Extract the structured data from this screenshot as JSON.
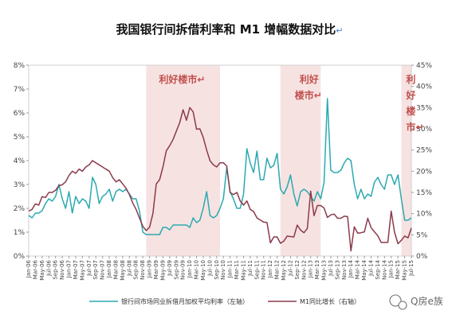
{
  "chart_data": {
    "type": "line",
    "title": "我国银行间拆借利率和 M1 增幅数据对比",
    "title_mark": "↵",
    "y_left": {
      "ylim": [
        0,
        8
      ],
      "ticks": [
        "0%",
        "1%",
        "2%",
        "3%",
        "4%",
        "5%",
        "6%",
        "7%",
        "8%"
      ]
    },
    "y_right": {
      "ylim": [
        0,
        45
      ],
      "ticks": [
        "0%",
        "5%",
        "10%",
        "15%",
        "20%",
        "25%",
        "30%",
        "35%",
        "40%",
        "45%"
      ]
    },
    "x_range": [
      "2006-01",
      "2015-07"
    ],
    "x_ticks": [
      "Jan-06",
      "Mar-06",
      "May-06",
      "Jul-06",
      "Sep-06",
      "Nov-06",
      "Jan-07",
      "Mar-07",
      "May-07",
      "Jul-07",
      "Sep-07",
      "Nov-07",
      "Jan-08",
      "Mar-08",
      "May-08",
      "Jul-08",
      "Sep-08",
      "Nov-08",
      "Jan-09",
      "Mar-09",
      "May-09",
      "Jul-09",
      "Sep-09",
      "Nov-09",
      "Jan-10",
      "Mar-10",
      "May-10",
      "Jul-10",
      "Sep-10",
      "Nov-10",
      "Jan-11",
      "Mar-11",
      "May-11",
      "Jul-11",
      "Sep-11",
      "Nov-11",
      "Jan-12",
      "Mar-12",
      "May-12",
      "Jul-12",
      "Sep-12",
      "Nov-12",
      "Jan-13",
      "Mar-13",
      "May-13",
      "Jul-13",
      "Sep-13",
      "Nov-13",
      "Jan-14",
      "Mar-14",
      "May-14",
      "Jul-14",
      "Sep-14",
      "Nov-14",
      "Jan-15",
      "Mar-15",
      "May-15",
      "Jul-15"
    ],
    "series": [
      {
        "name": "银行间市场同业拆借月加权平均利率（左轴）",
        "axis": "left",
        "color": "#2aaab0",
        "points": [
          [
            "2006-01",
            1.7
          ],
          [
            "2006-02",
            1.6
          ],
          [
            "2006-03",
            1.8
          ],
          [
            "2006-04",
            1.8
          ],
          [
            "2006-05",
            1.9
          ],
          [
            "2006-06",
            2.2
          ],
          [
            "2006-07",
            2.4
          ],
          [
            "2006-08",
            2.3
          ],
          [
            "2006-09",
            2.5
          ],
          [
            "2006-10",
            3.0
          ],
          [
            "2006-11",
            2.4
          ],
          [
            "2006-12",
            2.0
          ],
          [
            "2007-01",
            2.7
          ],
          [
            "2007-02",
            1.8
          ],
          [
            "2007-03",
            2.5
          ],
          [
            "2007-04",
            2.2
          ],
          [
            "2007-05",
            2.4
          ],
          [
            "2007-06",
            2.3
          ],
          [
            "2007-07",
            2.0
          ],
          [
            "2007-08",
            3.3
          ],
          [
            "2007-09",
            3.0
          ],
          [
            "2007-10",
            2.2
          ],
          [
            "2007-11",
            2.5
          ],
          [
            "2007-12",
            2.6
          ],
          [
            "2008-01",
            2.8
          ],
          [
            "2008-02",
            2.3
          ],
          [
            "2008-03",
            2.7
          ],
          [
            "2008-04",
            2.8
          ],
          [
            "2008-05",
            2.7
          ],
          [
            "2008-06",
            2.8
          ],
          [
            "2008-07",
            2.6
          ],
          [
            "2008-08",
            2.4
          ],
          [
            "2008-09",
            2.4
          ],
          [
            "2008-10",
            1.9
          ],
          [
            "2008-11",
            1.0
          ],
          [
            "2008-12",
            0.9
          ],
          [
            "2009-01",
            0.9
          ],
          [
            "2009-02",
            0.9
          ],
          [
            "2009-03",
            0.9
          ],
          [
            "2009-04",
            0.9
          ],
          [
            "2009-05",
            1.2
          ],
          [
            "2009-06",
            1.2
          ],
          [
            "2009-07",
            1.1
          ],
          [
            "2009-08",
            1.3
          ],
          [
            "2009-09",
            1.3
          ],
          [
            "2009-10",
            1.3
          ],
          [
            "2009-11",
            1.3
          ],
          [
            "2009-12",
            1.3
          ],
          [
            "2010-01",
            1.2
          ],
          [
            "2010-02",
            1.6
          ],
          [
            "2010-03",
            1.4
          ],
          [
            "2010-04",
            1.5
          ],
          [
            "2010-05",
            2.0
          ],
          [
            "2010-06",
            2.7
          ],
          [
            "2010-07",
            1.7
          ],
          [
            "2010-08",
            1.6
          ],
          [
            "2010-09",
            1.7
          ],
          [
            "2010-10",
            2.0
          ],
          [
            "2010-11",
            2.4
          ],
          [
            "2010-12",
            3.7
          ],
          [
            "2011-01",
            2.7
          ],
          [
            "2011-02",
            2.4
          ],
          [
            "2011-03",
            2.0
          ],
          [
            "2011-04",
            2.0
          ],
          [
            "2011-05",
            2.6
          ],
          [
            "2011-06",
            4.5
          ],
          [
            "2011-07",
            3.9
          ],
          [
            "2011-08",
            3.5
          ],
          [
            "2011-09",
            4.4
          ],
          [
            "2011-10",
            3.2
          ],
          [
            "2011-11",
            3.2
          ],
          [
            "2011-12",
            4.1
          ],
          [
            "2012-01",
            3.7
          ],
          [
            "2012-02",
            3.8
          ],
          [
            "2012-03",
            4.3
          ],
          [
            "2012-04",
            2.8
          ],
          [
            "2012-05",
            2.6
          ],
          [
            "2012-06",
            2.9
          ],
          [
            "2012-07",
            3.4
          ],
          [
            "2012-08",
            2.6
          ],
          [
            "2012-09",
            2.1
          ],
          [
            "2012-10",
            2.7
          ],
          [
            "2012-11",
            2.8
          ],
          [
            "2012-12",
            2.7
          ],
          [
            "2013-01",
            2.5
          ],
          [
            "2013-02",
            2.3
          ],
          [
            "2013-03",
            2.7
          ],
          [
            "2013-04",
            2.4
          ],
          [
            "2013-05",
            3.1
          ],
          [
            "2013-06",
            6.6
          ],
          [
            "2013-07",
            3.6
          ],
          [
            "2013-08",
            3.5
          ],
          [
            "2013-09",
            3.5
          ],
          [
            "2013-10",
            3.6
          ],
          [
            "2013-11",
            3.9
          ],
          [
            "2013-12",
            4.1
          ],
          [
            "2014-01",
            4.0
          ],
          [
            "2014-02",
            3.0
          ],
          [
            "2014-03",
            2.4
          ],
          [
            "2014-04",
            2.8
          ],
          [
            "2014-05",
            2.4
          ],
          [
            "2014-06",
            2.6
          ],
          [
            "2014-07",
            2.5
          ],
          [
            "2014-08",
            3.1
          ],
          [
            "2014-09",
            3.3
          ],
          [
            "2014-10",
            3.0
          ],
          [
            "2014-11",
            2.8
          ],
          [
            "2014-12",
            3.4
          ],
          [
            "2015-01",
            3.4
          ],
          [
            "2015-02",
            3.0
          ],
          [
            "2015-03",
            3.4
          ],
          [
            "2015-04",
            2.4
          ],
          [
            "2015-05",
            1.5
          ],
          [
            "2015-06",
            1.5
          ],
          [
            "2015-07",
            1.6
          ]
        ]
      },
      {
        "name": "M1同比增长（右轴）",
        "axis": "right",
        "color": "#8b3a4a",
        "points": [
          [
            "2006-01",
            10.6
          ],
          [
            "2006-02",
            11.0
          ],
          [
            "2006-03",
            12.3
          ],
          [
            "2006-04",
            12.0
          ],
          [
            "2006-05",
            14.0
          ],
          [
            "2006-06",
            13.8
          ],
          [
            "2006-07",
            15.0
          ],
          [
            "2006-08",
            15.0
          ],
          [
            "2006-09",
            15.5
          ],
          [
            "2006-10",
            16.6
          ],
          [
            "2006-11",
            16.8
          ],
          [
            "2006-12",
            17.5
          ],
          [
            "2007-01",
            19.0
          ],
          [
            "2007-02",
            20.0
          ],
          [
            "2007-03",
            19.5
          ],
          [
            "2007-04",
            20.5
          ],
          [
            "2007-05",
            20.0
          ],
          [
            "2007-06",
            21.0
          ],
          [
            "2007-07",
            21.5
          ],
          [
            "2007-08",
            22.5
          ],
          [
            "2007-09",
            22.0
          ],
          [
            "2007-10",
            21.5
          ],
          [
            "2007-11",
            21.0
          ],
          [
            "2007-12",
            20.5
          ],
          [
            "2008-01",
            20.0
          ],
          [
            "2008-02",
            18.5
          ],
          [
            "2008-03",
            17.5
          ],
          [
            "2008-04",
            18.0
          ],
          [
            "2008-05",
            17.0
          ],
          [
            "2008-06",
            16.0
          ],
          [
            "2008-07",
            14.5
          ],
          [
            "2008-08",
            12.5
          ],
          [
            "2008-09",
            11.0
          ],
          [
            "2008-10",
            9.0
          ],
          [
            "2008-11",
            7.0
          ],
          [
            "2008-12",
            6.0
          ],
          [
            "2009-01",
            6.8
          ],
          [
            "2009-02",
            10.0
          ],
          [
            "2009-03",
            17.0
          ],
          [
            "2009-04",
            18.0
          ],
          [
            "2009-05",
            21.0
          ],
          [
            "2009-06",
            24.8
          ],
          [
            "2009-07",
            26.0
          ],
          [
            "2009-08",
            27.5
          ],
          [
            "2009-09",
            29.5
          ],
          [
            "2009-10",
            31.5
          ],
          [
            "2009-11",
            34.5
          ],
          [
            "2009-12",
            32.0
          ],
          [
            "2010-01",
            35.0
          ],
          [
            "2010-02",
            34.0
          ],
          [
            "2010-03",
            29.9
          ],
          [
            "2010-04",
            30.0
          ],
          [
            "2010-05",
            28.0
          ],
          [
            "2010-06",
            25.0
          ],
          [
            "2010-07",
            22.5
          ],
          [
            "2010-08",
            21.5
          ],
          [
            "2010-09",
            21.0
          ],
          [
            "2010-10",
            22.0
          ],
          [
            "2010-11",
            22.0
          ],
          [
            "2010-12",
            21.2
          ],
          [
            "2011-01",
            15.0
          ],
          [
            "2011-02",
            14.5
          ],
          [
            "2011-03",
            15.0
          ],
          [
            "2011-04",
            13.0
          ],
          [
            "2011-05",
            12.0
          ],
          [
            "2011-06",
            13.0
          ],
          [
            "2011-07",
            11.0
          ],
          [
            "2011-08",
            10.5
          ],
          [
            "2011-09",
            9.0
          ],
          [
            "2011-10",
            8.5
          ],
          [
            "2011-11",
            8.0
          ],
          [
            "2011-12",
            7.9
          ],
          [
            "2012-01",
            3.1
          ],
          [
            "2012-02",
            4.5
          ],
          [
            "2012-03",
            4.5
          ],
          [
            "2012-04",
            3.0
          ],
          [
            "2012-05",
            3.5
          ],
          [
            "2012-06",
            4.7
          ],
          [
            "2012-07",
            4.6
          ],
          [
            "2012-08",
            4.5
          ],
          [
            "2012-09",
            7.3
          ],
          [
            "2012-10",
            6.1
          ],
          [
            "2012-11",
            5.5
          ],
          [
            "2012-12",
            6.5
          ],
          [
            "2013-01",
            15.3
          ],
          [
            "2013-02",
            9.5
          ],
          [
            "2013-03",
            11.9
          ],
          [
            "2013-04",
            11.9
          ],
          [
            "2013-05",
            11.3
          ],
          [
            "2013-06",
            9.1
          ],
          [
            "2013-07",
            9.7
          ],
          [
            "2013-08",
            9.9
          ],
          [
            "2013-09",
            8.9
          ],
          [
            "2013-10",
            8.9
          ],
          [
            "2013-11",
            9.4
          ],
          [
            "2013-12",
            9.3
          ],
          [
            "2014-01",
            1.2
          ],
          [
            "2014-02",
            6.9
          ],
          [
            "2014-03",
            5.4
          ],
          [
            "2014-04",
            5.5
          ],
          [
            "2014-05",
            5.7
          ],
          [
            "2014-06",
            8.9
          ],
          [
            "2014-07",
            6.7
          ],
          [
            "2014-08",
            5.7
          ],
          [
            "2014-09",
            4.8
          ],
          [
            "2014-10",
            3.2
          ],
          [
            "2014-11",
            3.2
          ],
          [
            "2014-12",
            3.2
          ],
          [
            "2015-01",
            10.6
          ],
          [
            "2015-02",
            5.6
          ],
          [
            "2015-03",
            2.9
          ],
          [
            "2015-04",
            3.7
          ],
          [
            "2015-05",
            4.7
          ],
          [
            "2015-06",
            4.3
          ],
          [
            "2015-07",
            6.6
          ]
        ]
      }
    ],
    "annotations": [
      {
        "label": "利好楼市",
        "mark": "↵",
        "span": [
          "2008-12",
          "2010-10"
        ]
      },
      {
        "label": "利好楼市",
        "mark": "↵",
        "span": [
          "2012-04",
          "2013-04"
        ]
      },
      {
        "label": "利好楼市",
        "mark": "↵",
        "span": [
          "2015-04",
          "2015-07"
        ]
      }
    ],
    "grid": false,
    "legend": "bottom"
  },
  "watermark": {
    "text": "Q房e族"
  }
}
